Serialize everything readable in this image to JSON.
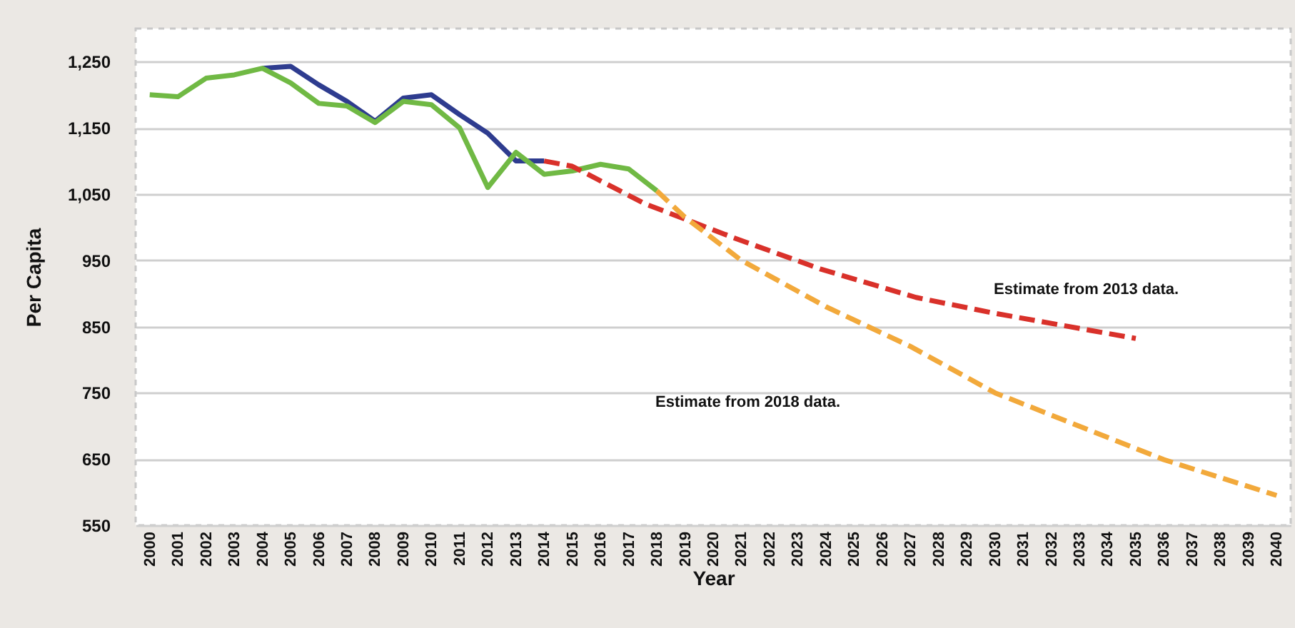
{
  "chart_data": {
    "type": "line",
    "xlabel": "Year",
    "ylabel": "Per Capita",
    "xlim": [
      1999.5,
      2040.5
    ],
    "ylim": [
      550,
      1300
    ],
    "xticks": [
      2000,
      2001,
      2002,
      2003,
      2004,
      2005,
      2006,
      2007,
      2008,
      2009,
      2010,
      2011,
      2012,
      2013,
      2014,
      2015,
      2016,
      2017,
      2018,
      2019,
      2020,
      2021,
      2022,
      2023,
      2024,
      2025,
      2026,
      2027,
      2028,
      2029,
      2030,
      2031,
      2032,
      2033,
      2034,
      2035,
      2036,
      2037,
      2038,
      2039,
      2040
    ],
    "yticks": [
      550,
      650,
      750,
      850,
      950,
      {
        "value": 1050,
        "label": "1,050"
      },
      {
        "value": 1150,
        "label": "1,150"
      },
      {
        "value": 1250,
        "label": "1,250"
      }
    ],
    "grid": "y",
    "series": [
      {
        "color": "#2e3c8f",
        "line_style": "solid",
        "x": [
          2004,
          2005,
          2006,
          2007,
          2008,
          2009,
          2010,
          2011,
          2012,
          2013,
          2014
        ],
        "values": [
          1240,
          1243,
          1215,
          1190,
          1160,
          1195,
          1200,
          1170,
          1142,
          1100,
          1100
        ]
      },
      {
        "color": "#70b944",
        "line_style": "solid",
        "x": [
          2000,
          2001,
          2002,
          2003,
          2004,
          2005,
          2006,
          2007,
          2008,
          2009,
          2010,
          2011,
          2012,
          2013,
          2014,
          2015,
          2016,
          2017,
          2018
        ],
        "values": [
          1200,
          1197,
          1225,
          1230,
          1240,
          1218,
          1187,
          1183,
          1158,
          1190,
          1185,
          1150,
          1060,
          1113,
          1080,
          1085,
          1095,
          1088,
          1055
        ]
      },
      {
        "color": "#d9312a",
        "line_style": "dashed",
        "x": [
          2014,
          2015,
          2017.6,
          2020.8,
          2023.8,
          2027.2,
          2030,
          2035
        ],
        "values": [
          1100,
          1092,
          1035,
          983,
          937,
          894,
          870,
          832
        ]
      },
      {
        "color": "#f2a93b",
        "line_style": "dashed",
        "x": [
          2018,
          2019,
          2021,
          2024,
          2027,
          2030,
          2036,
          2040
        ],
        "values": [
          1055,
          1015,
          950,
          880,
          820,
          750,
          649,
          595
        ]
      }
    ],
    "annotations": [
      "Estimate from 2013 data.",
      "Estimate from 2018 data."
    ]
  }
}
